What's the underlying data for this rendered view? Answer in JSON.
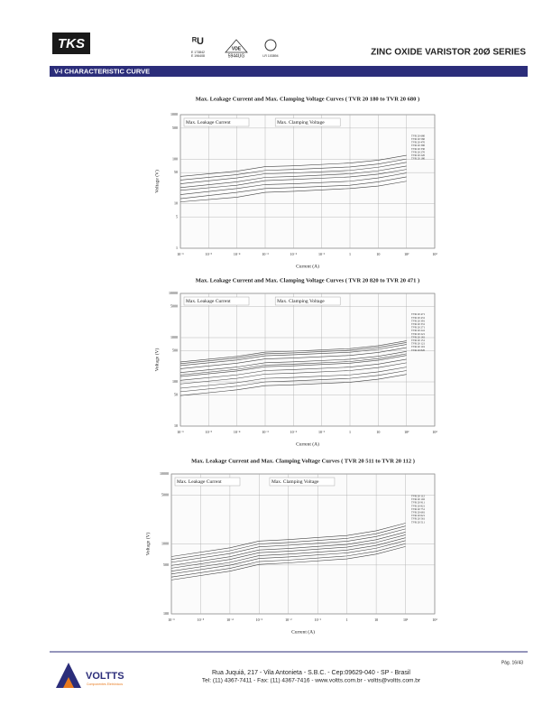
{
  "header": {
    "logo": "TKS",
    "cert_marks": [
      "E 173842",
      "E 196408",
      "VDE",
      "5944UG",
      "LR 103894"
    ],
    "title": "ZINC OXIDE VARISTOR 20Ø SERIES",
    "section": "V-I CHARACTERISTIC CURVE"
  },
  "chart_data": [
    {
      "type": "line",
      "title": "Max. Leakage Current and Max. Clamping Voltage Curves ( TVR 20 180 to TVR 20 680 )",
      "x_label": "Current (A)",
      "y_label": "Voltage (V)",
      "annotations": [
        "Max. Leakage Current",
        "Max. Clamping Voltage"
      ],
      "xlog": true,
      "ylog": true,
      "grid": true,
      "color": "#444444",
      "xlim": [
        1e-06,
        1000
      ],
      "ylim": [
        1,
        1000
      ],
      "xticks": [
        {
          "value": 1e-06,
          "label": "10⁻⁶"
        },
        {
          "value": 1e-05,
          "label": "10⁻⁵"
        },
        {
          "value": 0.0001,
          "label": "10⁻⁴"
        },
        {
          "value": 0.001,
          "label": "10⁻³"
        },
        {
          "value": 0.01,
          "label": "10⁻²"
        },
        {
          "value": 0.1,
          "label": "10⁻¹"
        },
        1,
        10,
        {
          "value": 100,
          "label": "10²"
        },
        {
          "value": 1000,
          "label": "10³"
        }
      ],
      "yticks": [
        1,
        5,
        10,
        50,
        100,
        500,
        1000
      ],
      "x": [
        1e-06,
        0.0001,
        0.001,
        0.01,
        1,
        10,
        100
      ],
      "series": [
        {
          "name": "TVR 20 680",
          "values": [
            41,
            54,
            68,
            71,
            82,
            95,
            122
          ]
        },
        {
          "name": "TVR 20 560",
          "values": [
            34,
            45,
            56,
            59,
            67,
            78,
            101
          ]
        },
        {
          "name": "TVR 20 470",
          "values": [
            28,
            38,
            47,
            49,
            56,
            66,
            85
          ]
        },
        {
          "name": "TVR 20 390",
          "values": [
            23,
            31,
            39,
            41,
            47,
            55,
            70
          ]
        },
        {
          "name": "TVR 20 330",
          "values": [
            20,
            26,
            33,
            35,
            40,
            46,
            59
          ]
        },
        {
          "name": "TVR 20 270",
          "values": [
            16,
            22,
            27,
            28,
            32,
            38,
            49
          ]
        },
        {
          "name": "TVR 20 220",
          "values": [
            13,
            18,
            22,
            23,
            26,
            31,
            40
          ]
        },
        {
          "name": "TVR 20 180",
          "values": [
            11,
            14,
            18,
            19,
            22,
            25,
            32
          ]
        }
      ]
    },
    {
      "type": "line",
      "title": "Max. Leakage Current and Max. Clamping Voltage Curves ( TVR 20 820 to TVR 20 471 )",
      "x_label": "Current (A)",
      "y_label": "Voltage (V)",
      "annotations": [
        "Max. Leakage Current",
        "Max. Clamping Voltage"
      ],
      "xlog": true,
      "ylog": true,
      "grid": true,
      "color": "#444444",
      "xlim": [
        1e-06,
        1000
      ],
      "ylim": [
        10,
        10000
      ],
      "xticks": [
        {
          "value": 1e-06,
          "label": "10⁻⁶"
        },
        {
          "value": 1e-05,
          "label": "10⁻⁵"
        },
        {
          "value": 0.0001,
          "label": "10⁻⁴"
        },
        {
          "value": 0.001,
          "label": "10⁻³"
        },
        {
          "value": 0.01,
          "label": "10⁻²"
        },
        {
          "value": 0.1,
          "label": "10⁻¹"
        },
        1,
        10,
        {
          "value": 100,
          "label": "10²"
        },
        {
          "value": 1000,
          "label": "10³"
        }
      ],
      "yticks": [
        10,
        50,
        100,
        500,
        1000,
        5000,
        10000
      ],
      "x": [
        1e-06,
        0.0001,
        0.001,
        0.01,
        1,
        10,
        100
      ],
      "series": [
        {
          "name": "TVR 20 471",
          "values": [
            282,
            376,
            470,
            494,
            564,
            658,
            846
          ]
        },
        {
          "name": "TVR 20 431",
          "values": [
            258,
            344,
            430,
            452,
            516,
            602,
            774
          ]
        },
        {
          "name": "TVR 20 391",
          "values": [
            234,
            312,
            390,
            410,
            468,
            546,
            702
          ]
        },
        {
          "name": "TVR 20 331",
          "values": [
            198,
            264,
            330,
            347,
            396,
            462,
            594
          ]
        },
        {
          "name": "TVR 20 271",
          "values": [
            162,
            216,
            270,
            284,
            324,
            378,
            486
          ]
        },
        {
          "name": "TVR 20 241",
          "values": [
            144,
            192,
            240,
            252,
            288,
            336,
            432
          ]
        },
        {
          "name": "TVR 20 221",
          "values": [
            132,
            176,
            220,
            231,
            264,
            308,
            396
          ]
        },
        {
          "name": "TVR 20 181",
          "values": [
            108,
            144,
            180,
            189,
            216,
            252,
            324
          ]
        },
        {
          "name": "TVR 20 151",
          "values": [
            90,
            120,
            150,
            158,
            180,
            210,
            270
          ]
        },
        {
          "name": "TVR 20 121",
          "values": [
            72,
            96,
            120,
            126,
            144,
            168,
            216
          ]
        },
        {
          "name": "TVR 20 101",
          "values": [
            60,
            80,
            100,
            105,
            120,
            140,
            180
          ]
        },
        {
          "name": "TVR 20 820",
          "values": [
            49,
            66,
            82,
            86,
            98,
            115,
            148
          ]
        }
      ]
    },
    {
      "type": "line",
      "title": "Max. Leakage Current and Max. Clamping Voltage Curves ( TVR 20 511 to TVR 20 112 )",
      "x_label": "Current (A)",
      "y_label": "Voltage (V)",
      "annotations": [
        "Max. Leakage Current",
        "Max. Clamping Voltage"
      ],
      "xlog": true,
      "ylog": true,
      "grid": true,
      "color": "#444444",
      "xlim": [
        1e-06,
        1000
      ],
      "ylim": [
        100,
        10000
      ],
      "xticks": [
        {
          "value": 1e-06,
          "label": "10⁻⁶"
        },
        {
          "value": 1e-05,
          "label": "10⁻⁵"
        },
        {
          "value": 0.0001,
          "label": "10⁻⁴"
        },
        {
          "value": 0.001,
          "label": "10⁻³"
        },
        {
          "value": 0.01,
          "label": "10⁻²"
        },
        {
          "value": 0.1,
          "label": "10⁻¹"
        },
        1,
        10,
        {
          "value": 100,
          "label": "10²"
        },
        {
          "value": 1000,
          "label": "10³"
        }
      ],
      "yticks": [
        100,
        500,
        1000,
        5000,
        10000
      ],
      "x": [
        1e-06,
        0.0001,
        0.001,
        0.01,
        1,
        10,
        100
      ],
      "series": [
        {
          "name": "TVR 20 112",
          "values": [
            660,
            880,
            1100,
            1155,
            1320,
            1540,
            1980
          ]
        },
        {
          "name": "TVR 20 102",
          "values": [
            600,
            800,
            1000,
            1050,
            1200,
            1400,
            1800
          ]
        },
        {
          "name": "TVR 20 911",
          "values": [
            546,
            728,
            910,
            956,
            1092,
            1274,
            1638
          ]
        },
        {
          "name": "TVR 20 821",
          "values": [
            492,
            656,
            820,
            861,
            984,
            1148,
            1476
          ]
        },
        {
          "name": "TVR 20 751",
          "values": [
            450,
            600,
            750,
            788,
            900,
            1050,
            1350
          ]
        },
        {
          "name": "TVR 20 681",
          "values": [
            408,
            544,
            680,
            714,
            816,
            952,
            1224
          ]
        },
        {
          "name": "TVR 20 621",
          "values": [
            372,
            496,
            620,
            651,
            744,
            868,
            1116
          ]
        },
        {
          "name": "TVR 20 561",
          "values": [
            336,
            448,
            560,
            588,
            672,
            784,
            1008
          ]
        },
        {
          "name": "TVR 20 511",
          "values": [
            306,
            408,
            510,
            536,
            612,
            714,
            918
          ]
        }
      ]
    }
  ],
  "footer": {
    "company": "VOLTTS",
    "tagline": "Componentes Eletrônicos",
    "address": "Rua Juquiá, 217  -  Vila Antonieta  -  S.B.C.  -  Cep:09629-040  -  SP - Brasil",
    "contact": "Tel: (11) 4367-7411  -  Fax: (11) 4367-7416  -  www.voltts.com.br  -  voltts@voltts.com.br",
    "page": "Pág. 16/43"
  }
}
